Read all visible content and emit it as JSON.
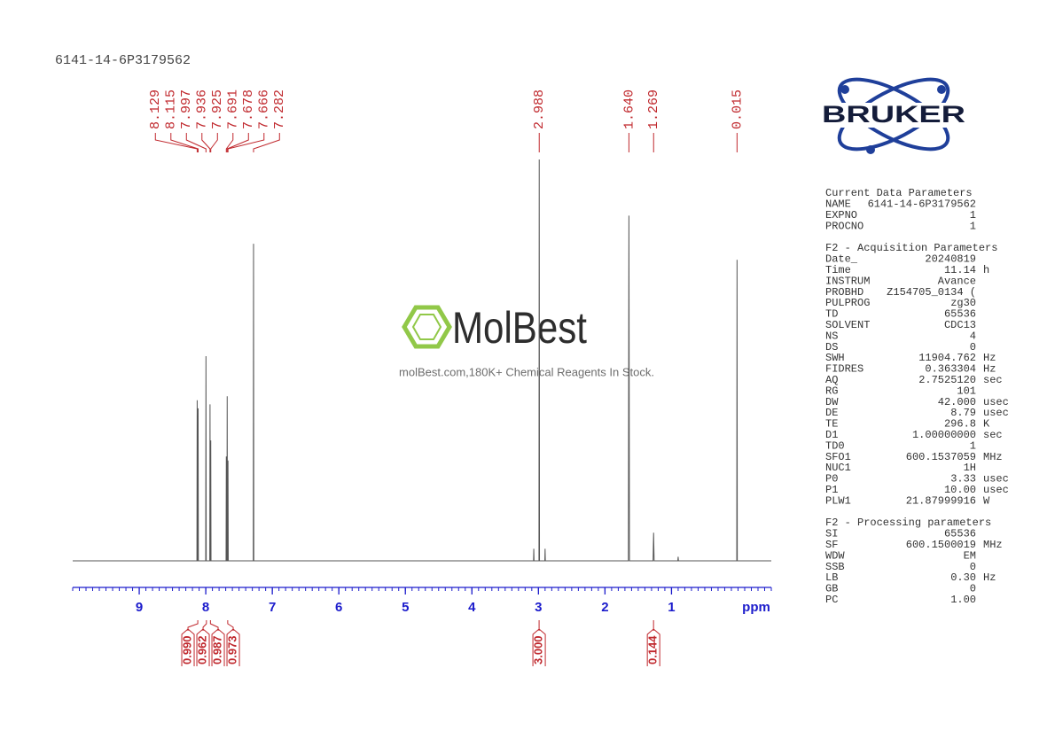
{
  "chart_data": {
    "type": "line",
    "title": "6141-14-6P3179562",
    "xlabel": "ppm",
    "color": "#555555",
    "x": [
      10,
      8.133,
      8.129,
      8.125,
      8.119,
      8.115,
      8.111,
      8.001,
      7.997,
      7.993,
      7.94,
      7.936,
      7.932,
      7.929,
      7.925,
      7.921,
      7.695,
      7.691,
      7.687,
      7.682,
      7.678,
      7.674,
      7.67,
      7.666,
      7.662,
      7.286,
      7.282,
      7.278,
      3.074,
      3.07,
      3.066,
      2.992,
      2.988,
      2.984,
      2.904,
      2.9,
      2.896,
      1.648,
      1.64,
      1.632,
      1.277,
      1.269,
      1.261,
      0.905,
      0.9,
      0.895,
      0.019,
      0.015,
      0.011,
      -0.5
    ],
    "values": [
      0,
      0,
      40,
      0,
      0,
      38,
      0,
      0,
      51,
      0,
      0,
      39,
      0,
      0,
      30,
      0,
      0,
      26,
      0,
      0,
      41,
      0,
      0,
      25,
      0,
      0,
      79,
      0,
      0,
      3,
      0,
      0,
      100,
      0,
      0,
      3,
      0,
      0,
      86,
      0,
      0,
      7,
      0,
      0,
      1,
      0,
      0,
      75,
      0,
      0
    ],
    "xlim": [
      10,
      -0.5
    ],
    "ylim": [
      0,
      100
    ],
    "xticks": [
      9,
      8,
      7,
      6,
      5,
      4,
      3,
      2,
      1
    ],
    "xminorticks": [
      10,
      9.9,
      9.8,
      9.7,
      9.6,
      9.5,
      9.4,
      9.3,
      9.2,
      9.1,
      9,
      8.9,
      8.8,
      8.7,
      8.6,
      8.5,
      8.4,
      8.3,
      8.2,
      8.1,
      8,
      7.9,
      7.8,
      7.7,
      7.6,
      7.5,
      7.4,
      7.3,
      7.2,
      7.1,
      7,
      6.9,
      6.8,
      6.7,
      6.6,
      6.5,
      6.4,
      6.3,
      6.2,
      6.1,
      6,
      5.9,
      5.8,
      5.7,
      5.6,
      5.5,
      5.4,
      5.3,
      5.2,
      5.1,
      5,
      4.9,
      4.8,
      4.7,
      4.6,
      4.5,
      4.4,
      4.3,
      4.2,
      4.1,
      4,
      3.9,
      3.8,
      3.7,
      3.6,
      3.5,
      3.4,
      3.3,
      3.2,
      3.1,
      3,
      2.9,
      2.8,
      2.7,
      2.6,
      2.5,
      2.4,
      2.3,
      2.2,
      2.1,
      2,
      1.9,
      1.8,
      1.7,
      1.6,
      1.5,
      1.4,
      1.3,
      1.2,
      1.1,
      1,
      0.9,
      0.8,
      0.7,
      0.6,
      0.5,
      0.4,
      0.3,
      0.2,
      0.1,
      0,
      -0.1,
      -0.2,
      -0.3,
      -0.4,
      -0.5
    ],
    "peaks": {
      "values": [
        8.129,
        8.115,
        7.997,
        7.936,
        7.925,
        7.691,
        7.678,
        7.666,
        7.282,
        2.988,
        1.64,
        1.269,
        0.015
      ],
      "value_labels": [
        "8.129",
        "8.115",
        "7.997",
        "7.936",
        "7.925",
        "7.691",
        "7.678",
        "7.666",
        "7.282",
        "2.988",
        "1.640",
        "1.269",
        "0.015"
      ]
    },
    "integrals": {
      "x": [
        8.12,
        7.99,
        7.93,
        7.67,
        2.99,
        1.27
      ],
      "values": [
        0.99,
        0.962,
        0.987,
        0.973,
        3,
        0.144
      ],
      "value_labels": [
        "0.990",
        "0.962",
        "0.987",
        "0.973",
        "3.000",
        "0.144"
      ]
    }
  },
  "branding": {
    "logo": "BRUKER",
    "watermark": "MolBest",
    "watermark_caption": "molBest.com,180K+ Chemical Reagents In Stock."
  },
  "parameters": [
    {
      "title": "Current Data Parameters",
      "rows": [
        [
          "NAME",
          "6141-14-6P3179562"
        ],
        [
          "EXPNO",
          "1"
        ],
        [
          "PROCNO",
          "1"
        ]
      ]
    },
    {
      "title": "F2 - Acquisition Parameters",
      "rows": [
        [
          "Date_",
          "20240819"
        ],
        [
          "Time",
          "11.14",
          "h"
        ],
        [
          "INSTRUM",
          "Avance"
        ],
        [
          "PROBHD",
          "Z154705_0134 ("
        ],
        [
          "PULPROG",
          "zg30"
        ],
        [
          "TD",
          "65536"
        ],
        [
          "SOLVENT",
          "CDC13"
        ],
        [
          "NS",
          "4"
        ],
        [
          "DS",
          "0"
        ],
        [
          "SWH",
          "11904.762",
          "Hz"
        ],
        [
          "FIDRES",
          "0.363304",
          "Hz"
        ],
        [
          "AQ",
          "2.7525120",
          "sec"
        ],
        [
          "RG",
          "101"
        ],
        [
          "DW",
          "42.000",
          "usec"
        ],
        [
          "DE",
          "8.79",
          "usec"
        ],
        [
          "TE",
          "296.8",
          "K"
        ],
        [
          "D1",
          "1.00000000",
          "sec"
        ],
        [
          "TD0",
          "1"
        ],
        [
          "SFO1",
          "600.1537059",
          "MHz"
        ],
        [
          "NUC1",
          "1H"
        ],
        [
          "P0",
          "3.33",
          "usec"
        ],
        [
          "P1",
          "10.00",
          "usec"
        ],
        [
          "PLW1",
          "21.87999916",
          "W"
        ]
      ]
    },
    {
      "title": "F2 - Processing parameters",
      "rows": [
        [
          "SI",
          "65536"
        ],
        [
          "SF",
          "600.1500019",
          "MHz"
        ],
        [
          "WDW",
          "EM"
        ],
        [
          "SSB",
          "0"
        ],
        [
          "LB",
          "0.30",
          "Hz"
        ],
        [
          "GB",
          "0"
        ],
        [
          "PC",
          "1.00"
        ]
      ]
    }
  ]
}
